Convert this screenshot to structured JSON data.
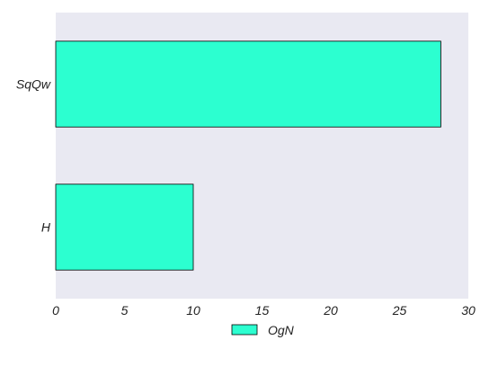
{
  "chart_data": {
    "type": "bar",
    "orientation": "horizontal",
    "categories": [
      "SqQw",
      "H"
    ],
    "series": [
      {
        "name": "OgN",
        "values": [
          28,
          10
        ]
      }
    ],
    "xlim": [
      0,
      30
    ],
    "xticks": [
      0,
      5,
      10,
      15,
      20,
      25,
      30
    ],
    "title": "",
    "xlabel": "",
    "ylabel": "",
    "grid": false,
    "legend_position": "bottom-center",
    "colors": {
      "bar": "#2cffd0",
      "bar_edge": "#000000",
      "plot_background": "#e9e9f2"
    }
  }
}
